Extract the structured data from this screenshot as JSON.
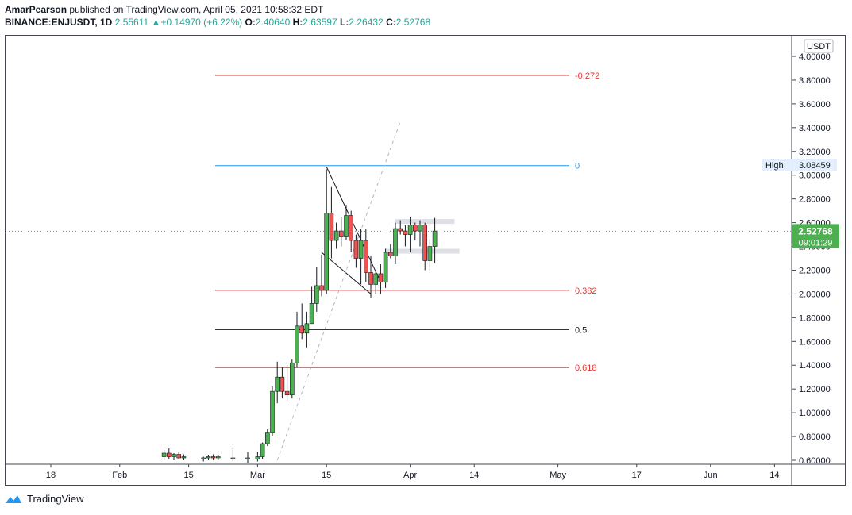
{
  "header": {
    "author": "AmarPearson",
    "published_text": "published on TradingView.com, April 05, 2021 10:58:32 EDT",
    "symbol": "BINANCE:ENJUSDT, 1D",
    "last": "2.55611",
    "change_arrow": "▲",
    "change": "+0.14970 (+6.22%)",
    "o_label": "O:",
    "o_value": "2.40640",
    "h_label": "H:",
    "h_value": "2.63597",
    "l_label": "L:",
    "l_value": "2.26432",
    "c_label": "C:",
    "c_value": "2.52768"
  },
  "footer": {
    "brand": "TradingView"
  },
  "colors": {
    "up": "#26a69a",
    "up_body": "#4caf50",
    "down": "#ef5350",
    "fib_red": "#e53935",
    "fib_blue": "#2196f3",
    "fib_black": "#131722",
    "price_line": "#ef5350",
    "price_label_bg": "#4caf50",
    "high_label_bg": "#e3effd"
  },
  "chart_data": {
    "type": "candlestick",
    "currency_label": "USDT",
    "y_ticks": [
      "4.00000",
      "3.80000",
      "3.60000",
      "3.40000",
      "3.20000",
      "3.00000",
      "2.80000",
      "2.60000",
      "2.40000",
      "2.20000",
      "2.00000",
      "1.80000",
      "1.60000",
      "1.40000",
      "1.20000",
      "1.00000",
      "0.80000",
      "0.60000"
    ],
    "y_tick_values": [
      4.0,
      3.8,
      3.6,
      3.4,
      3.2,
      3.0,
      2.8,
      2.6,
      2.4,
      2.2,
      2.0,
      1.8,
      1.6,
      1.4,
      1.2,
      1.0,
      0.8,
      0.6
    ],
    "ylim": [
      0.6,
      4.0
    ],
    "x_ticks": [
      "18",
      "Feb",
      "15",
      "Mar",
      "15",
      "Apr",
      "14",
      "May",
      "17",
      "Jun",
      "14"
    ],
    "x_tick_dates": [
      "2021-01-18",
      "2021-02-01",
      "2021-02-15",
      "2021-03-01",
      "2021-03-15",
      "2021-04-01",
      "2021-04-14",
      "2021-05-01",
      "2021-05-17",
      "2021-06-01",
      "2021-06-14"
    ],
    "current_price": {
      "value": 2.52768,
      "label": "2.52768",
      "countdown": "09:01:29"
    },
    "high_marker": {
      "label": "High",
      "value": 3.08459,
      "value_label": "3.08459"
    },
    "fib_levels": [
      {
        "level": "-0.272",
        "price": 3.84,
        "color": "#e53935"
      },
      {
        "level": "0",
        "price": 3.08,
        "color": "#2196f3"
      },
      {
        "level": "0.382",
        "price": 2.03,
        "color": "#e53935"
      },
      {
        "level": "0.5",
        "price": 1.7,
        "color": "#131722"
      },
      {
        "level": "0.618",
        "price": 1.38,
        "color": "#e53935"
      }
    ],
    "candles": [
      {
        "d": "2021-02-10",
        "o": 0.63,
        "h": 0.69,
        "l": 0.6,
        "c": 0.66
      },
      {
        "d": "2021-02-11",
        "o": 0.66,
        "h": 0.7,
        "l": 0.61,
        "c": 0.63
      },
      {
        "d": "2021-02-12",
        "o": 0.63,
        "h": 0.66,
        "l": 0.6,
        "c": 0.65
      },
      {
        "d": "2021-02-13",
        "o": 0.65,
        "h": 0.67,
        "l": 0.61,
        "c": 0.62
      },
      {
        "d": "2021-02-14",
        "o": 0.62,
        "h": 0.65,
        "l": 0.6,
        "c": 0.63
      },
      {
        "d": "2021-02-18",
        "o": 0.61,
        "h": 0.63,
        "l": 0.59,
        "c": 0.62
      },
      {
        "d": "2021-02-19",
        "o": 0.62,
        "h": 0.64,
        "l": 0.6,
        "c": 0.63
      },
      {
        "d": "2021-02-20",
        "o": 0.63,
        "h": 0.65,
        "l": 0.6,
        "c": 0.62
      },
      {
        "d": "2021-02-21",
        "o": 0.62,
        "h": 0.64,
        "l": 0.6,
        "c": 0.63
      },
      {
        "d": "2021-02-24",
        "o": 0.62,
        "h": 0.7,
        "l": 0.59,
        "c": 0.61
      },
      {
        "d": "2021-02-27",
        "o": 0.61,
        "h": 0.67,
        "l": 0.58,
        "c": 0.62
      },
      {
        "d": "2021-03-01",
        "o": 0.61,
        "h": 0.67,
        "l": 0.59,
        "c": 0.63
      },
      {
        "d": "2021-03-02",
        "o": 0.63,
        "h": 0.75,
        "l": 0.61,
        "c": 0.74
      },
      {
        "d": "2021-03-03",
        "o": 0.74,
        "h": 0.86,
        "l": 0.72,
        "c": 0.83
      },
      {
        "d": "2021-03-04",
        "o": 0.83,
        "h": 1.22,
        "l": 0.8,
        "c": 1.18
      },
      {
        "d": "2021-03-05",
        "o": 1.18,
        "h": 1.43,
        "l": 1.08,
        "c": 1.3
      },
      {
        "d": "2021-03-06",
        "o": 1.3,
        "h": 1.38,
        "l": 1.12,
        "c": 1.18
      },
      {
        "d": "2021-03-07",
        "o": 1.18,
        "h": 1.4,
        "l": 1.1,
        "c": 1.15
      },
      {
        "d": "2021-03-08",
        "o": 1.15,
        "h": 1.45,
        "l": 1.12,
        "c": 1.42
      },
      {
        "d": "2021-03-09",
        "o": 1.42,
        "h": 1.85,
        "l": 1.38,
        "c": 1.73
      },
      {
        "d": "2021-03-10",
        "o": 1.73,
        "h": 1.92,
        "l": 1.62,
        "c": 1.67
      },
      {
        "d": "2021-03-11",
        "o": 1.67,
        "h": 1.85,
        "l": 1.55,
        "c": 1.75
      },
      {
        "d": "2021-03-12",
        "o": 1.75,
        "h": 2.06,
        "l": 1.75,
        "c": 1.92
      },
      {
        "d": "2021-03-13",
        "o": 1.92,
        "h": 2.23,
        "l": 1.85,
        "c": 2.07
      },
      {
        "d": "2021-03-14",
        "o": 2.07,
        "h": 2.33,
        "l": 1.98,
        "c": 2.03
      },
      {
        "d": "2021-03-15",
        "o": 2.03,
        "h": 3.05,
        "l": 2.0,
        "c": 2.68
      },
      {
        "d": "2021-03-16",
        "o": 2.68,
        "h": 2.9,
        "l": 2.3,
        "c": 2.45
      },
      {
        "d": "2021-03-17",
        "o": 2.45,
        "h": 2.6,
        "l": 2.38,
        "c": 2.53
      },
      {
        "d": "2021-03-18",
        "o": 2.53,
        "h": 2.65,
        "l": 2.4,
        "c": 2.48
      },
      {
        "d": "2021-03-19",
        "o": 2.48,
        "h": 2.75,
        "l": 2.45,
        "c": 2.66
      },
      {
        "d": "2021-03-20",
        "o": 2.66,
        "h": 2.7,
        "l": 2.35,
        "c": 2.45
      },
      {
        "d": "2021-03-21",
        "o": 2.45,
        "h": 2.5,
        "l": 2.22,
        "c": 2.3
      },
      {
        "d": "2021-03-22",
        "o": 2.3,
        "h": 2.55,
        "l": 2.08,
        "c": 2.45
      },
      {
        "d": "2021-03-23",
        "o": 2.45,
        "h": 2.55,
        "l": 2.1,
        "c": 2.18
      },
      {
        "d": "2021-03-24",
        "o": 2.18,
        "h": 2.32,
        "l": 1.97,
        "c": 2.08
      },
      {
        "d": "2021-03-25",
        "o": 2.08,
        "h": 2.2,
        "l": 2.0,
        "c": 2.17
      },
      {
        "d": "2021-03-26",
        "o": 2.17,
        "h": 2.25,
        "l": 2.0,
        "c": 2.1
      },
      {
        "d": "2021-03-27",
        "o": 2.1,
        "h": 2.38,
        "l": 2.05,
        "c": 2.35
      },
      {
        "d": "2021-03-28",
        "o": 2.35,
        "h": 2.42,
        "l": 2.3,
        "c": 2.32
      },
      {
        "d": "2021-03-29",
        "o": 2.32,
        "h": 2.6,
        "l": 2.25,
        "c": 2.55
      },
      {
        "d": "2021-03-30",
        "o": 2.55,
        "h": 2.62,
        "l": 2.5,
        "c": 2.53
      },
      {
        "d": "2021-03-31",
        "o": 2.53,
        "h": 2.58,
        "l": 2.4,
        "c": 2.5
      },
      {
        "d": "2021-04-01",
        "o": 2.5,
        "h": 2.65,
        "l": 2.35,
        "c": 2.58
      },
      {
        "d": "2021-04-02",
        "o": 2.58,
        "h": 2.6,
        "l": 2.45,
        "c": 2.53
      },
      {
        "d": "2021-04-03",
        "o": 2.53,
        "h": 2.62,
        "l": 2.4,
        "c": 2.58
      },
      {
        "d": "2021-04-04",
        "o": 2.58,
        "h": 2.6,
        "l": 2.2,
        "c": 2.28
      },
      {
        "d": "2021-04-05",
        "o": 2.28,
        "h": 2.45,
        "l": 2.2,
        "c": 2.4
      },
      {
        "d": "2021-04-06",
        "o": 2.4,
        "h": 2.64,
        "l": 2.26,
        "c": 2.53
      }
    ],
    "trendlines": [
      {
        "from": {
          "d": "2021-03-15",
          "p": 3.07
        },
        "to": {
          "d": "2021-03-26",
          "p": 2.1
        },
        "style": "solid"
      },
      {
        "from": {
          "d": "2021-03-14",
          "p": 2.35
        },
        "to": {
          "d": "2021-03-24",
          "p": 2.0
        },
        "style": "solid"
      },
      {
        "from": {
          "d": "2021-03-05",
          "p": 0.6
        },
        "to": {
          "d": "2021-03-30",
          "p": 3.45
        },
        "style": "dashed"
      }
    ],
    "zones": [
      {
        "from": "2021-03-29",
        "to": "2021-04-10",
        "top": 2.63,
        "bottom": 2.59
      },
      {
        "from": "2021-03-27",
        "to": "2021-04-11",
        "top": 2.38,
        "bottom": 2.34
      }
    ]
  }
}
